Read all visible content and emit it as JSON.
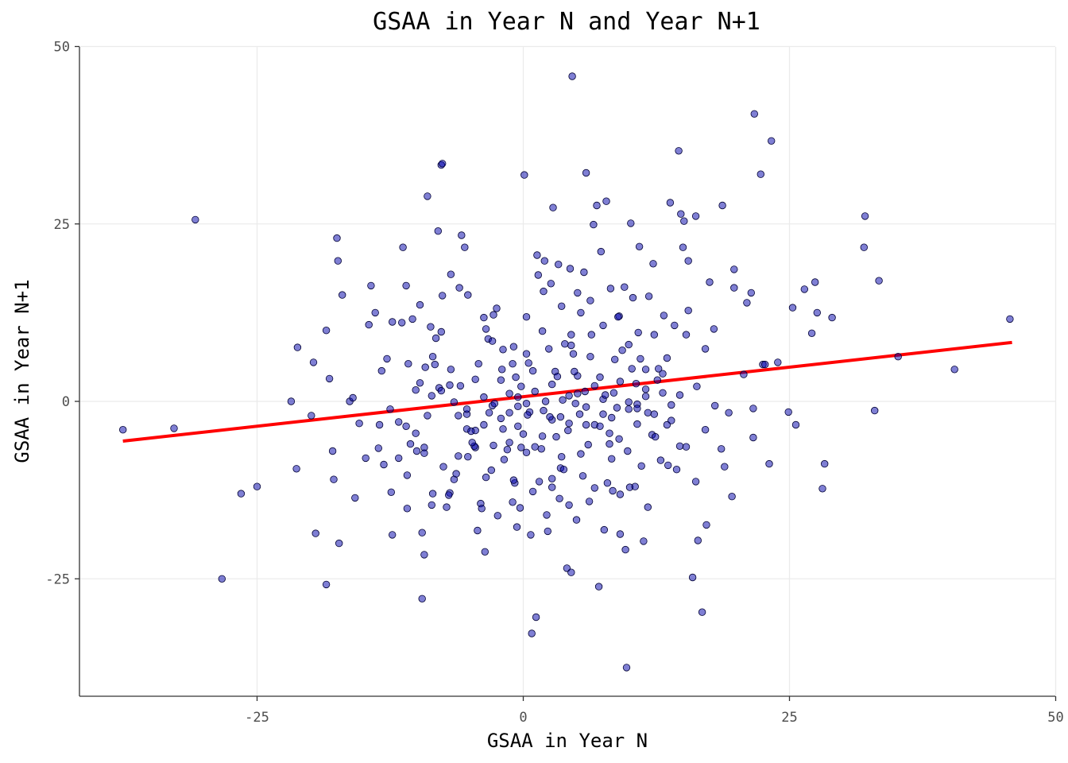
{
  "chart_data": {
    "type": "scatter",
    "title": "GSAA in Year N and Year N+1",
    "xlabel": "GSAA in Year N",
    "ylabel": "GSAA in Year N+1",
    "xlim": [
      -42,
      50
    ],
    "ylim": [
      -41,
      50
    ],
    "x_ticks": [
      -25,
      0,
      25,
      50
    ],
    "y_ticks": [
      -25,
      0,
      25,
      50
    ],
    "grid": true,
    "point_color": "#0000AA",
    "point_opacity": 0.5,
    "trend_line": {
      "color": "#FF0000",
      "x": [
        -37.6,
        45.9
      ],
      "y": [
        -5.6,
        8.3
      ]
    },
    "points": [
      [
        -37.6,
        -4.0
      ],
      [
        -32.8,
        -3.8
      ],
      [
        -30.8,
        25.6
      ],
      [
        -28.3,
        -25.0
      ],
      [
        -26.5,
        -13.0
      ],
      [
        -25.0,
        -12.0
      ],
      [
        -21.8,
        0.0
      ],
      [
        -21.3,
        -9.5
      ],
      [
        -21.2,
        7.6
      ],
      [
        -19.9,
        -2.0
      ],
      [
        -19.7,
        5.5
      ],
      [
        -19.5,
        -18.6
      ],
      [
        -18.5,
        10.0
      ],
      [
        -18.5,
        -25.8
      ],
      [
        -18.2,
        3.2
      ],
      [
        -17.9,
        -7.0
      ],
      [
        -17.8,
        -11.0
      ],
      [
        -17.5,
        23.0
      ],
      [
        -17.4,
        19.8
      ],
      [
        -17.3,
        -20.0
      ],
      [
        -17.0,
        15.0
      ],
      [
        -16.3,
        0.0
      ],
      [
        -16.0,
        0.5
      ],
      [
        -15.8,
        -13.6
      ],
      [
        -15.4,
        -3.1
      ],
      [
        -14.8,
        -8.0
      ],
      [
        -14.5,
        10.8
      ],
      [
        -13.6,
        -6.6
      ],
      [
        -13.1,
        -8.9
      ],
      [
        -12.4,
        -12.8
      ],
      [
        -12.3,
        11.2
      ],
      [
        -11.7,
        -8.0
      ],
      [
        -11.0,
        -3.5
      ],
      [
        -11.0,
        16.3
      ],
      [
        -10.8,
        5.3
      ],
      [
        -10.6,
        -6.0
      ],
      [
        -10.4,
        11.6
      ],
      [
        -10.0,
        -7.0
      ],
      [
        -9.7,
        2.6
      ],
      [
        -9.5,
        -18.5
      ],
      [
        -9.2,
        4.8
      ],
      [
        -9.0,
        -2.0
      ],
      [
        -8.6,
        0.8
      ],
      [
        -8.3,
        5.2
      ],
      [
        -7.9,
        1.9
      ],
      [
        -7.5,
        -9.2
      ],
      [
        -7.2,
        -14.9
      ],
      [
        -6.8,
        4.5
      ],
      [
        -6.5,
        -11.0
      ],
      [
        -5.5,
        21.7
      ],
      [
        -5.3,
        -1.8
      ],
      [
        -4.5,
        -6.5
      ],
      [
        -4.0,
        -14.4
      ],
      [
        -3.5,
        10.2
      ],
      [
        -3.3,
        8.8
      ],
      [
        -3.0,
        -9.7
      ],
      [
        -2.8,
        -6.2
      ],
      [
        -2.4,
        -16.1
      ],
      [
        -2.0,
        4.5
      ],
      [
        -1.5,
        -6.8
      ],
      [
        -1.0,
        5.3
      ],
      [
        -0.8,
        -11.5
      ],
      [
        -0.5,
        -0.7
      ],
      [
        -0.2,
        2.1
      ],
      [
        0.3,
        -7.2
      ],
      [
        0.6,
        -1.5
      ],
      [
        -4.6,
        -6.3
      ],
      [
        -3.7,
        11.8
      ],
      [
        -2.8,
        12.2
      ],
      [
        -1.9,
        7.3
      ],
      [
        -0.9,
        7.7
      ],
      [
        0.0,
        -4.6
      ],
      [
        0.9,
        -12.7
      ],
      [
        1.8,
        -4.9
      ],
      [
        2.7,
        -10.9
      ],
      [
        3.6,
        13.4
      ],
      [
        4.5,
        7.9
      ],
      [
        5.4,
        -7.4
      ],
      [
        6.3,
        6.3
      ],
      [
        7.2,
        3.4
      ],
      [
        8.1,
        -6.0
      ],
      [
        9.0,
        12.0
      ],
      [
        9.9,
        -1.1
      ],
      [
        10.8,
        9.7
      ],
      [
        11.7,
        -14.9
      ],
      [
        12.6,
        3.0
      ],
      [
        13.5,
        -3.3
      ],
      [
        14.4,
        -9.6
      ],
      [
        15.3,
        -6.4
      ],
      [
        16.2,
        -11.3
      ],
      [
        17.1,
        7.4
      ],
      [
        18.0,
        -0.6
      ],
      [
        18.9,
        -9.2
      ],
      [
        19.8,
        16.0
      ],
      [
        20.7,
        3.8
      ],
      [
        21.6,
        -5.1
      ],
      [
        22.5,
        5.2
      ],
      [
        -10.9,
        -15.1
      ],
      [
        -10.1,
        1.6
      ],
      [
        -9.3,
        -6.5
      ],
      [
        -8.5,
        -13.0
      ],
      [
        -7.7,
        9.8
      ],
      [
        -6.9,
        -12.9
      ],
      [
        -6.1,
        -7.7
      ],
      [
        -5.3,
        -3.9
      ],
      [
        -4.5,
        -4.1
      ],
      [
        -3.7,
        -3.3
      ],
      [
        -2.9,
        8.5
      ],
      [
        -2.1,
        3.0
      ],
      [
        -1.3,
        1.1
      ],
      [
        -0.5,
        -3.5
      ],
      [
        0.3,
        6.7
      ],
      [
        1.1,
        -6.4
      ],
      [
        1.9,
        15.5
      ],
      [
        2.7,
        -2.6
      ],
      [
        3.5,
        -9.4
      ],
      [
        4.3,
        -3.1
      ],
      [
        5.1,
        1.1
      ],
      [
        5.9,
        -3.3
      ],
      [
        6.7,
        -12.2
      ],
      [
        7.5,
        -1.8
      ],
      [
        8.3,
        -8.1
      ],
      [
        9.1,
        -13.1
      ],
      [
        9.9,
        8.0
      ],
      [
        10.7,
        -0.4
      ],
      [
        11.5,
        0.7
      ],
      [
        12.3,
        9.4
      ],
      [
        13.1,
        3.9
      ],
      [
        13.9,
        -0.5
      ],
      [
        14.7,
        -6.3
      ],
      [
        15.5,
        12.8
      ],
      [
        16.3,
        2.1
      ],
      [
        17.1,
        -4.0
      ],
      [
        -13.3,
        4.3
      ],
      [
        -12.5,
        -1.1
      ],
      [
        -11.7,
        -2.9
      ],
      [
        -10.9,
        -10.4
      ],
      [
        -10.1,
        -4.5
      ],
      [
        -9.3,
        -7.3
      ],
      [
        -8.5,
        6.3
      ],
      [
        -7.7,
        1.5
      ],
      [
        -6.9,
        2.3
      ],
      [
        -6.1,
        -2.0
      ],
      [
        -5.3,
        -1.1
      ],
      [
        -4.5,
        3.1
      ],
      [
        -3.7,
        0.6
      ],
      [
        -2.9,
        -0.6
      ],
      [
        -2.1,
        -2.4
      ],
      [
        -1.3,
        -1.6
      ],
      [
        -0.5,
        0.6
      ],
      [
        0.3,
        -0.3
      ],
      [
        1.1,
        1.4
      ],
      [
        1.9,
        -1.3
      ],
      [
        2.7,
        2.4
      ],
      [
        3.5,
        -2.2
      ],
      [
        4.3,
        0.8
      ],
      [
        5.1,
        3.6
      ],
      [
        5.9,
        -0.8
      ],
      [
        6.7,
        2.2
      ],
      [
        7.5,
        0.3
      ],
      [
        8.3,
        -2.3
      ],
      [
        9.1,
        2.8
      ],
      [
        9.9,
        -0.1
      ],
      [
        10.7,
        -3.2
      ],
      [
        11.5,
        4.5
      ],
      [
        12.3,
        -1.8
      ],
      [
        13.1,
        1.2
      ],
      [
        13.9,
        -2.7
      ],
      [
        14.7,
        0.9
      ],
      [
        -9.0,
        28.9
      ],
      [
        -8.0,
        24.0
      ],
      [
        -7.7,
        33.3
      ],
      [
        -7.6,
        33.5
      ],
      [
        -6.0,
        16.0
      ],
      [
        -5.8,
        23.4
      ],
      [
        -5.2,
        15.0
      ],
      [
        -6.8,
        17.9
      ],
      [
        -4.8,
        -5.8
      ],
      [
        -4.3,
        -18.2
      ],
      [
        -3.9,
        -15.1
      ],
      [
        -3.6,
        -21.2
      ],
      [
        -5.2,
        -7.8
      ],
      [
        -6.3,
        -10.2
      ],
      [
        -8.6,
        -14.6
      ],
      [
        -9.3,
        -21.6
      ],
      [
        -9.5,
        -27.8
      ],
      [
        -7.0,
        -13.2
      ],
      [
        -12.3,
        -18.8
      ],
      [
        -13.5,
        -3.3
      ],
      [
        -14.3,
        16.3
      ],
      [
        -13.9,
        12.5
      ],
      [
        -12.8,
        6.0
      ],
      [
        -11.4,
        11.1
      ],
      [
        -11.3,
        21.7
      ],
      [
        -9.7,
        13.6
      ],
      [
        -8.7,
        10.5
      ],
      [
        -8.2,
        8.9
      ],
      [
        -7.6,
        14.9
      ],
      [
        -6.5,
        -0.1
      ],
      [
        -5.9,
        2.2
      ],
      [
        -4.9,
        -4.2
      ],
      [
        -4.2,
        5.3
      ],
      [
        -3.5,
        -10.7
      ],
      [
        -3.2,
        -1.6
      ],
      [
        -2.7,
        -0.3
      ],
      [
        -2.5,
        13.1
      ],
      [
        -1.9,
        -3.9
      ],
      [
        -1.8,
        -8.2
      ],
      [
        -1.3,
        -5.8
      ],
      [
        -1.0,
        -14.2
      ],
      [
        -0.9,
        -11.1
      ],
      [
        -0.7,
        3.4
      ],
      [
        -0.6,
        -17.7
      ],
      [
        -0.3,
        -15.0
      ],
      [
        -0.2,
        -6.5
      ],
      [
        0.1,
        31.9
      ],
      [
        0.3,
        11.9
      ],
      [
        0.4,
        -1.9
      ],
      [
        0.5,
        5.4
      ],
      [
        0.7,
        -18.8
      ],
      [
        0.8,
        -32.7
      ],
      [
        0.9,
        4.3
      ],
      [
        1.2,
        -30.4
      ],
      [
        1.3,
        20.6
      ],
      [
        1.4,
        17.8
      ],
      [
        1.5,
        -11.3
      ],
      [
        1.7,
        -6.7
      ],
      [
        1.8,
        9.9
      ],
      [
        2.0,
        19.8
      ],
      [
        2.1,
        0.0
      ],
      [
        2.2,
        -16.0
      ],
      [
        2.3,
        -18.3
      ],
      [
        2.4,
        7.4
      ],
      [
        2.5,
        -2.2
      ],
      [
        2.6,
        16.6
      ],
      [
        2.7,
        -12.1
      ],
      [
        2.8,
        27.3
      ],
      [
        3.0,
        4.2
      ],
      [
        3.1,
        -5.0
      ],
      [
        3.2,
        3.5
      ],
      [
        3.3,
        19.3
      ],
      [
        3.4,
        -13.7
      ],
      [
        3.6,
        -7.8
      ],
      [
        3.7,
        0.2
      ],
      [
        3.8,
        -9.6
      ],
      [
        3.9,
        8.1
      ],
      [
        4.1,
        -23.5
      ],
      [
        4.2,
        -4.1
      ],
      [
        4.3,
        -14.6
      ],
      [
        4.4,
        18.7
      ],
      [
        4.5,
        9.4
      ],
      [
        4.5,
        -24.1
      ],
      [
        4.6,
        45.8
      ],
      [
        4.7,
        6.7
      ],
      [
        4.8,
        4.2
      ],
      [
        4.9,
        -0.3
      ],
      [
        5.0,
        -16.7
      ],
      [
        5.1,
        15.3
      ],
      [
        5.3,
        -1.8
      ],
      [
        5.4,
        12.5
      ],
      [
        5.6,
        -10.5
      ],
      [
        5.7,
        18.2
      ],
      [
        5.8,
        1.4
      ],
      [
        5.9,
        32.2
      ],
      [
        6.1,
        -6.1
      ],
      [
        6.2,
        -14.1
      ],
      [
        6.3,
        14.2
      ],
      [
        6.4,
        9.4
      ],
      [
        6.6,
        24.9
      ],
      [
        6.7,
        -3.3
      ],
      [
        6.9,
        27.6
      ],
      [
        7.1,
        -26.1
      ],
      [
        7.2,
        -3.5
      ],
      [
        7.3,
        21.1
      ],
      [
        7.5,
        10.7
      ],
      [
        7.6,
        -18.1
      ],
      [
        7.7,
        0.9
      ],
      [
        7.8,
        28.2
      ],
      [
        7.9,
        -11.5
      ],
      [
        8.1,
        -4.5
      ],
      [
        8.2,
        15.9
      ],
      [
        8.4,
        -12.6
      ],
      [
        8.5,
        1.2
      ],
      [
        8.6,
        5.9
      ],
      [
        8.8,
        -0.9
      ],
      [
        8.9,
        11.9
      ],
      [
        9.0,
        -5.3
      ],
      [
        9.1,
        -18.7
      ],
      [
        9.3,
        7.2
      ],
      [
        9.5,
        16.1
      ],
      [
        9.6,
        -20.9
      ],
      [
        9.7,
        -37.5
      ],
      [
        9.8,
        -7.0
      ],
      [
        10.0,
        -12.1
      ],
      [
        10.1,
        25.1
      ],
      [
        10.2,
        4.6
      ],
      [
        10.3,
        14.6
      ],
      [
        10.5,
        -12.0
      ],
      [
        10.6,
        2.5
      ],
      [
        10.7,
        -1.0
      ],
      [
        10.9,
        21.8
      ],
      [
        11.0,
        6.0
      ],
      [
        11.1,
        -9.1
      ],
      [
        11.3,
        -19.7
      ],
      [
        11.5,
        1.7
      ],
      [
        11.7,
        -1.6
      ],
      [
        11.8,
        14.8
      ],
      [
        12.1,
        -4.7
      ],
      [
        12.2,
        19.4
      ],
      [
        12.4,
        -5.0
      ],
      [
        12.7,
        4.6
      ],
      [
        12.9,
        -8.3
      ],
      [
        13.2,
        12.1
      ],
      [
        13.5,
        6.1
      ],
      [
        13.6,
        -9.0
      ],
      [
        13.8,
        28.0
      ],
      [
        14.2,
        10.7
      ],
      [
        14.6,
        35.3
      ],
      [
        14.8,
        26.4
      ],
      [
        15.0,
        21.7
      ],
      [
        15.1,
        25.4
      ],
      [
        15.3,
        9.4
      ],
      [
        15.5,
        19.8
      ],
      [
        15.9,
        -24.8
      ],
      [
        16.2,
        26.1
      ],
      [
        16.4,
        -19.6
      ],
      [
        16.8,
        -29.7
      ],
      [
        17.2,
        -17.4
      ],
      [
        17.5,
        16.8
      ],
      [
        17.9,
        10.2
      ],
      [
        18.6,
        -6.7
      ],
      [
        18.7,
        27.6
      ],
      [
        19.3,
        -1.6
      ],
      [
        19.6,
        -13.4
      ],
      [
        19.8,
        18.6
      ],
      [
        21.0,
        13.9
      ],
      [
        21.4,
        15.3
      ],
      [
        21.6,
        -1.0
      ],
      [
        21.7,
        40.5
      ],
      [
        22.3,
        32.0
      ],
      [
        22.7,
        5.2
      ],
      [
        23.1,
        -8.8
      ],
      [
        23.3,
        36.7
      ],
      [
        23.9,
        5.5
      ],
      [
        24.9,
        -1.5
      ],
      [
        25.3,
        13.2
      ],
      [
        25.6,
        -3.3
      ],
      [
        26.4,
        15.8
      ],
      [
        27.1,
        9.6
      ],
      [
        27.4,
        16.8
      ],
      [
        27.6,
        12.5
      ],
      [
        28.1,
        -12.3
      ],
      [
        28.3,
        -8.8
      ],
      [
        29.0,
        11.8
      ],
      [
        32.0,
        21.7
      ],
      [
        32.1,
        26.1
      ],
      [
        33.0,
        -1.3
      ],
      [
        33.4,
        17.0
      ],
      [
        35.2,
        6.3
      ],
      [
        40.5,
        4.5
      ],
      [
        45.7,
        11.6
      ]
    ]
  }
}
